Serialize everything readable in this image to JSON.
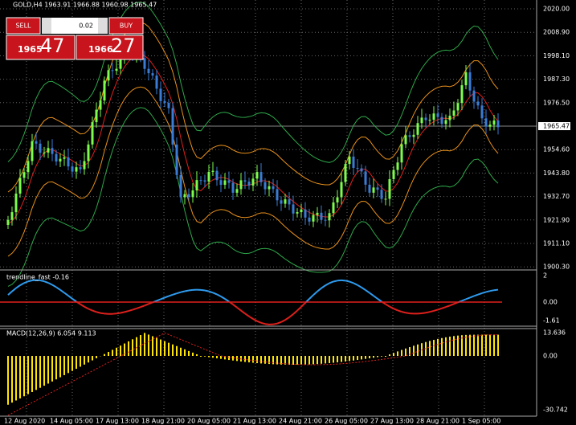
{
  "header": {
    "title": "GOLD,H4  1963.91 1966.88 1960.98 1965.47"
  },
  "trade_panel": {
    "sell": "SELL",
    "buy": "BUY",
    "lot": "0.02",
    "sell_price_big": "1965",
    "sell_price_small": "47",
    "buy_price_big": "1966",
    "buy_price_small": "27"
  },
  "price_axis": {
    "labels": [
      "2020.00",
      "2008.90",
      "1998.10",
      "1987.30",
      "1976.50",
      "1965.47",
      "1954.60",
      "1943.80",
      "1932.70",
      "1921.90",
      "1911.10",
      "1900.30"
    ],
    "current": "1965.47"
  },
  "trendline_panel": {
    "title": "trendline_fast -0.16",
    "labels": [
      "2",
      "0.00",
      "-1.61"
    ]
  },
  "macd_panel": {
    "title": "MACD(12,26,9) 6.054 9.113",
    "labels": [
      "13.636",
      "0.00",
      "-30.742"
    ]
  },
  "time_axis": {
    "labels": [
      "12 Aug 2020",
      "14 Aug 05:00",
      "17 Aug 13:00",
      "18 Aug 21:00",
      "20 Aug 05:00",
      "21 Aug 13:00",
      "24 Aug 21:00",
      "26 Aug 05:00",
      "27 Aug 13:00",
      "28 Aug 21:00",
      "1 Sep 05:00"
    ]
  }
}
